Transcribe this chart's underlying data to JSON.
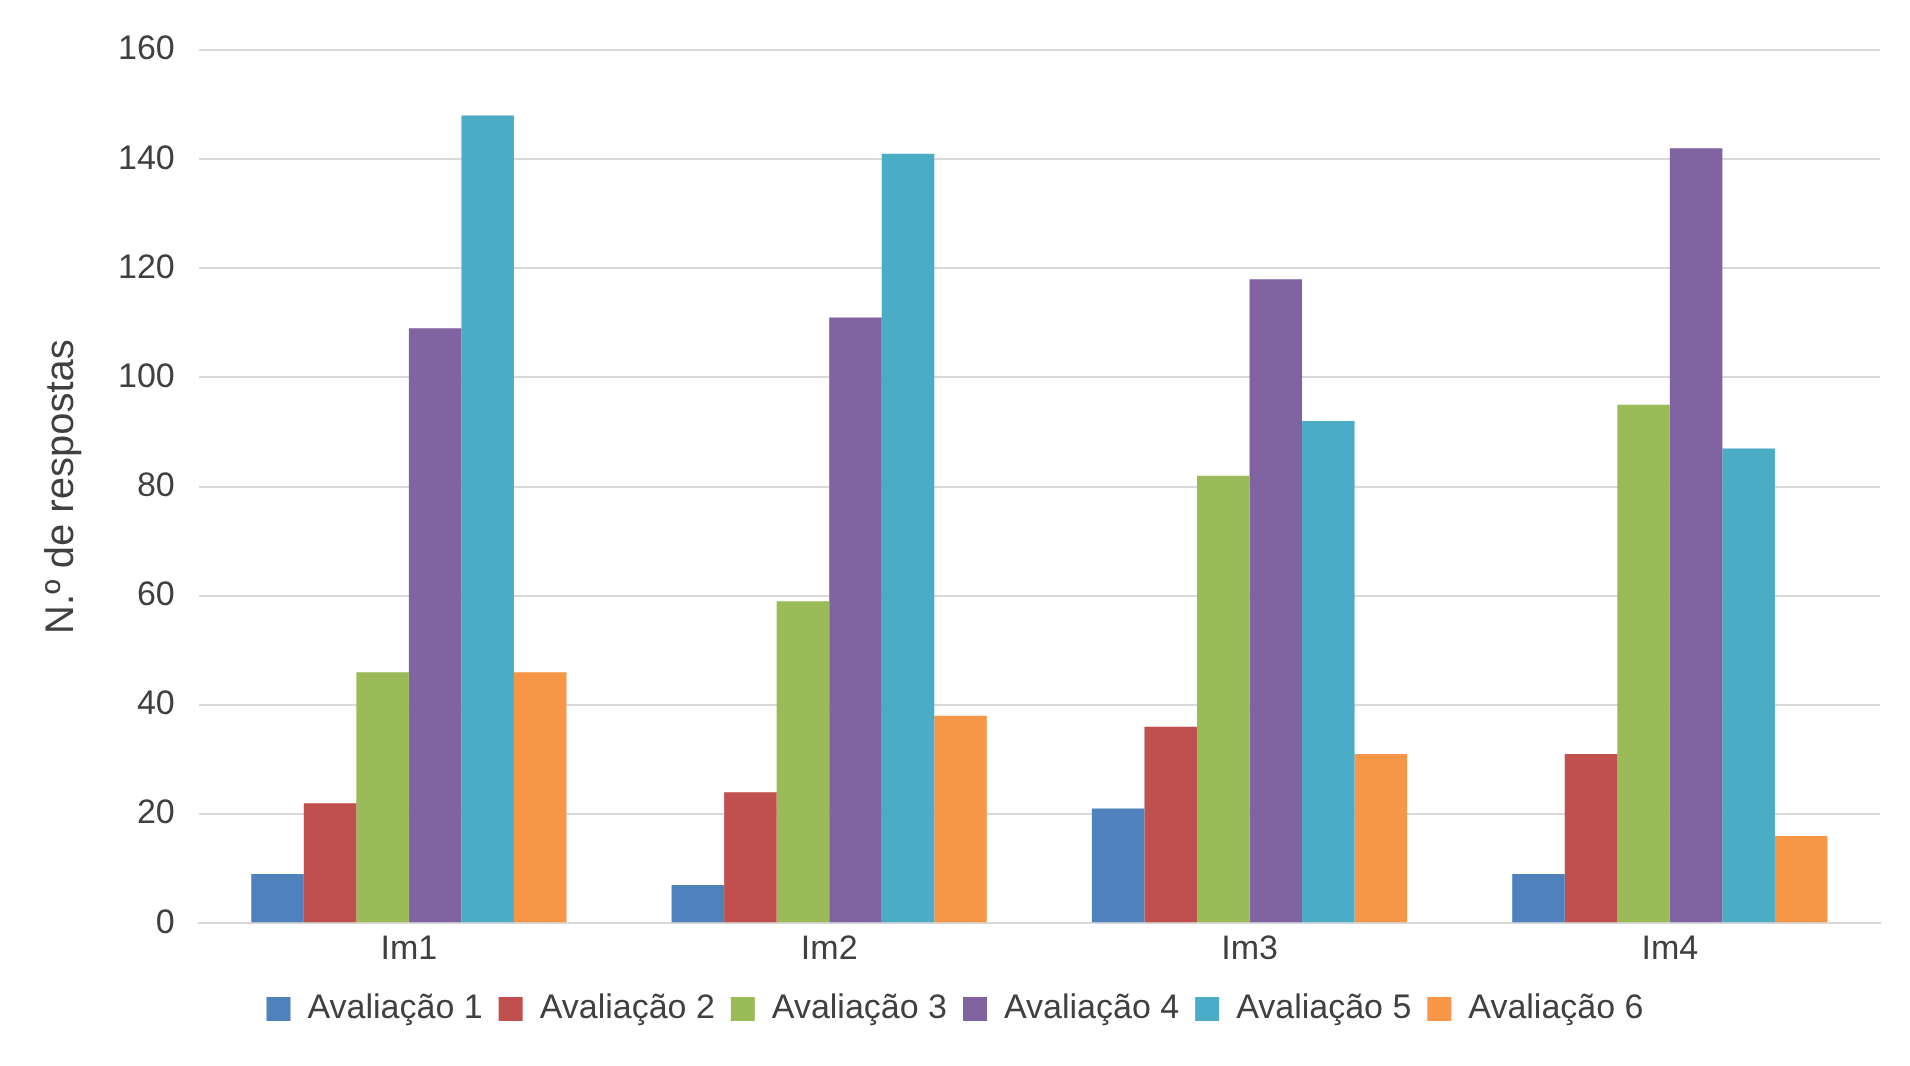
{
  "chart_data": {
    "type": "bar",
    "ylabel": "N.º de respostas",
    "categories": [
      "Im1",
      "Im2",
      "Im3",
      "Im4"
    ],
    "series": [
      {
        "name": "Avaliação 1",
        "color": "#4f81bd",
        "values": [
          9,
          7,
          21,
          9
        ]
      },
      {
        "name": "Avaliação 2",
        "color": "#c0504d",
        "values": [
          22,
          24,
          36,
          31
        ]
      },
      {
        "name": "Avaliação 3",
        "color": "#9bbb59",
        "values": [
          46,
          59,
          82,
          95
        ]
      },
      {
        "name": "Avaliação 4",
        "color": "#8064a2",
        "values": [
          109,
          111,
          118,
          142
        ]
      },
      {
        "name": "Avaliação 5",
        "color": "#4bacc6",
        "values": [
          148,
          141,
          92,
          87
        ]
      },
      {
        "name": "Avaliação 6",
        "color": "#f79646",
        "values": [
          46,
          38,
          31,
          16
        ]
      }
    ],
    "ylim": [
      0,
      160
    ],
    "yticks": [
      0,
      20,
      40,
      60,
      80,
      100,
      120,
      140,
      160
    ],
    "grid": "y",
    "legend": "bottom"
  }
}
